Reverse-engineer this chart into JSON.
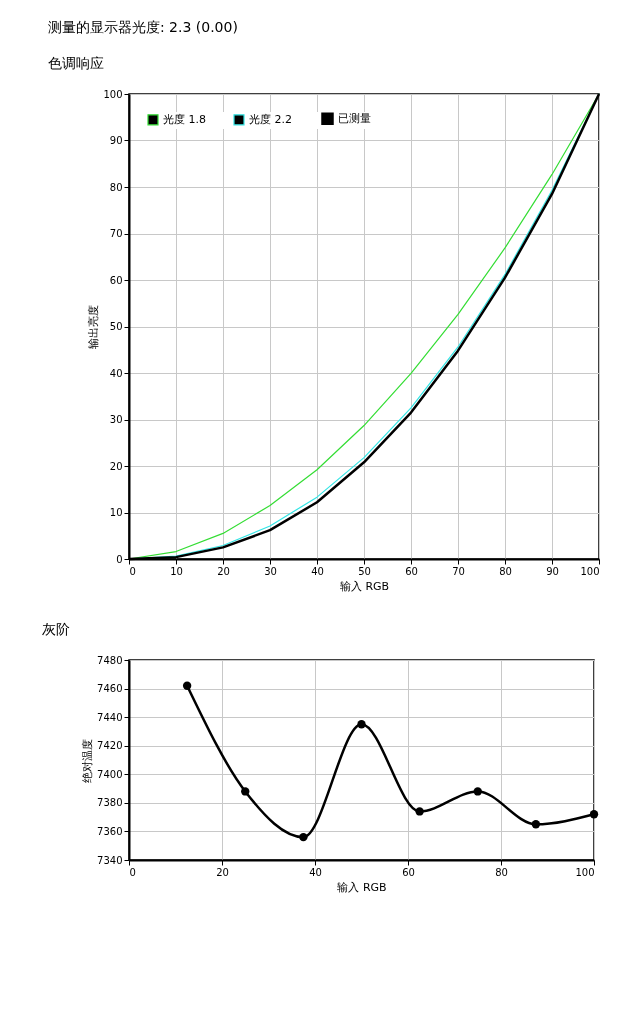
{
  "chart_data": [
    {
      "type": "line",
      "title": "测量的显示器光度: 2.3 (0.00)",
      "subtitle": "色调响应",
      "xlabel": "输入 RGB",
      "ylabel": "输出亮度",
      "x": [
        0,
        10,
        20,
        30,
        40,
        50,
        60,
        70,
        80,
        90,
        100
      ],
      "series": [
        {
          "name": "光度 1.8",
          "color": "#33dd33",
          "values": [
            0,
            1.6,
            5.5,
            11.5,
            19.2,
            28.7,
            39.9,
            52.6,
            66.9,
            82.7,
            100
          ]
        },
        {
          "name": "光度 2.2",
          "color": "#33e5e5",
          "values": [
            0,
            0.6,
            2.9,
            7.1,
            13.3,
            21.8,
            32.5,
            45.6,
            61.2,
            79.3,
            100
          ]
        },
        {
          "name": "已测量",
          "color": "#000000",
          "values": [
            0,
            0.4,
            2.5,
            6.2,
            12.2,
            20.8,
            31.5,
            44.8,
            60.5,
            78.5,
            100
          ]
        }
      ],
      "xlim": [
        0,
        100
      ],
      "ylim": [
        0,
        100
      ],
      "xticks": [
        0,
        10,
        20,
        30,
        40,
        50,
        60,
        70,
        80,
        90,
        100
      ],
      "yticks": [
        0,
        10,
        20,
        30,
        40,
        50,
        60,
        70,
        80,
        90,
        100
      ],
      "grid": true,
      "legend": "top left",
      "marker": "none",
      "line_style": "solid"
    },
    {
      "type": "line",
      "title": "灰阶",
      "xlabel": "输入 RGB",
      "ylabel": "绝对温度",
      "x": [
        12.5,
        25,
        37.5,
        50,
        62.5,
        75,
        87.5,
        100
      ],
      "series": [
        {
          "color": "#000000",
          "values": [
            7462,
            7388,
            7356,
            7435,
            7374,
            7388,
            7365,
            7372
          ]
        }
      ],
      "xlim": [
        0,
        100
      ],
      "ylim": [
        7340,
        7480
      ],
      "xticks": [
        0,
        20,
        40,
        60,
        80,
        100
      ],
      "yticks": [
        7340,
        7360,
        7380,
        7400,
        7420,
        7440,
        7460,
        7480
      ],
      "grid": true,
      "marker": "circle",
      "line_style": "solid"
    }
  ]
}
